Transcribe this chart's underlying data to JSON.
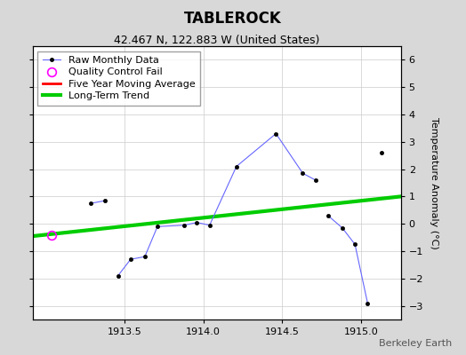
{
  "title": "TABLEROCK",
  "subtitle": "42.467 N, 122.883 W (United States)",
  "ylabel": "Temperature Anomaly (°C)",
  "credit": "Berkeley Earth",
  "xlim": [
    1912.92,
    1915.25
  ],
  "ylim": [
    -3.5,
    6.5
  ],
  "yticks": [
    -3,
    -2,
    -1,
    0,
    1,
    2,
    3,
    4,
    5,
    6
  ],
  "xticks": [
    1913.5,
    1914.0,
    1914.5,
    1915.0
  ],
  "segments": [
    {
      "x": [
        1913.29,
        1913.38
      ],
      "y": [
        0.75,
        0.85
      ]
    },
    {
      "x": [
        1913.46,
        1913.54,
        1913.63,
        1913.71,
        1913.88,
        1913.96,
        1914.04,
        1914.21,
        1914.46,
        1914.63,
        1914.71
      ],
      "y": [
        -1.9,
        -1.3,
        -1.2,
        -0.1,
        -0.05,
        0.05,
        -0.05,
        2.1,
        3.3,
        1.85,
        1.6
      ]
    },
    {
      "x": [
        1914.79,
        1914.88,
        1914.96,
        1915.04
      ],
      "y": [
        0.3,
        -0.15,
        -0.75,
        -2.9
      ]
    },
    {
      "x": [
        1915.13
      ],
      "y": [
        2.6
      ]
    }
  ],
  "qc_fail_x": [
    1913.04
  ],
  "qc_fail_y": [
    -0.4
  ],
  "trend_x": [
    1912.92,
    1915.25
  ],
  "trend_y": [
    -0.45,
    1.0
  ],
  "bg_color": "#d8d8d8",
  "plot_bg_color": "#ffffff",
  "raw_line_color": "#6666ff",
  "raw_marker_color": "black",
  "qc_color": "magenta",
  "trend_color": "#00cc00",
  "moving_avg_color": "red",
  "title_fontsize": 12,
  "subtitle_fontsize": 9,
  "credit_fontsize": 8,
  "label_fontsize": 8,
  "tick_fontsize": 8
}
